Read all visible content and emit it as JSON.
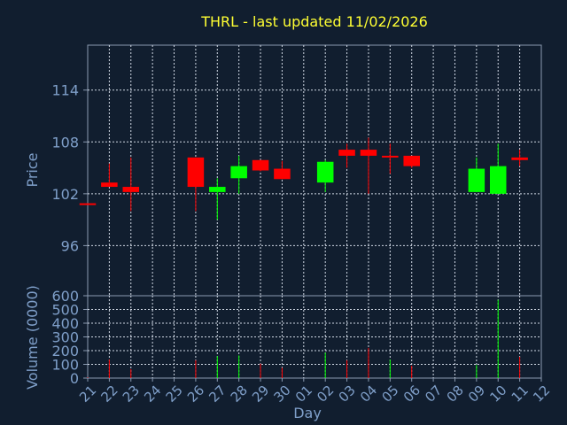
{
  "chart_data": {
    "type": "candlestick",
    "title": "THRL - last updated 11/02/2026",
    "xlabel": "Day",
    "price_ylabel": "Price",
    "volume_ylabel": "Volume (0000)",
    "price_yticks": [
      96,
      102,
      108,
      114
    ],
    "price_ylim": [
      90.2,
      119.2
    ],
    "volume_yticks": [
      0,
      100,
      200,
      300,
      400,
      500,
      600
    ],
    "volume_ylim": [
      0,
      600
    ],
    "days": [
      "21",
      "22",
      "23",
      "24",
      "25",
      "26",
      "27",
      "28",
      "29",
      "30",
      "01",
      "02",
      "03",
      "04",
      "05",
      "06",
      "07",
      "08",
      "09",
      "10",
      "11",
      "12"
    ],
    "grid": true,
    "up_color": "#00ff00",
    "down_color": "#ff0000",
    "background": "#111e2f",
    "candles": [
      {
        "day": "21",
        "open": 100.9,
        "high": 100.9,
        "low": 100.7,
        "close": 100.7
      },
      {
        "day": "22",
        "open": 103.3,
        "high": 105.5,
        "low": 102.8,
        "close": 102.8
      },
      {
        "day": "23",
        "open": 102.8,
        "high": 106.2,
        "low": 100.0,
        "close": 102.2
      },
      {
        "day": "26",
        "open": 106.2,
        "high": 106.2,
        "low": 100.0,
        "close": 102.8
      },
      {
        "day": "27",
        "open": 102.2,
        "high": 103.8,
        "low": 99.0,
        "close": 102.8
      },
      {
        "day": "28",
        "open": 103.8,
        "high": 106.4,
        "low": 102.0,
        "close": 105.2
      },
      {
        "day": "29",
        "open": 105.9,
        "high": 105.9,
        "low": 104.6,
        "close": 104.7
      },
      {
        "day": "30",
        "open": 104.9,
        "high": 105.8,
        "low": 103.7,
        "close": 103.7
      },
      {
        "day": "02",
        "open": 103.3,
        "high": 105.9,
        "low": 102.2,
        "close": 105.7
      },
      {
        "day": "03",
        "open": 107.1,
        "high": 107.8,
        "low": 105.0,
        "close": 106.4
      },
      {
        "day": "04",
        "open": 107.1,
        "high": 108.5,
        "low": 102.0,
        "close": 106.4
      },
      {
        "day": "05",
        "open": 106.4,
        "high": 107.8,
        "low": 104.3,
        "close": 106.4
      },
      {
        "day": "06",
        "open": 106.4,
        "high": 106.4,
        "low": 105.0,
        "close": 105.2
      },
      {
        "day": "09",
        "open": 102.2,
        "high": 106.2,
        "low": 102.2,
        "close": 104.9
      },
      {
        "day": "10",
        "open": 102.0,
        "high": 107.8,
        "low": 102.0,
        "close": 105.2
      },
      {
        "day": "11",
        "open": 106.2,
        "high": 107.1,
        "low": 105.2,
        "close": 105.9
      }
    ],
    "volume": [
      {
        "day": "21",
        "value": 5,
        "dir": "down"
      },
      {
        "day": "22",
        "value": 135,
        "dir": "down"
      },
      {
        "day": "23",
        "value": 65,
        "dir": "down"
      },
      {
        "day": "26",
        "value": 130,
        "dir": "down"
      },
      {
        "day": "27",
        "value": 160,
        "dir": "up"
      },
      {
        "day": "28",
        "value": 165,
        "dir": "up"
      },
      {
        "day": "29",
        "value": 105,
        "dir": "down"
      },
      {
        "day": "30",
        "value": 75,
        "dir": "down"
      },
      {
        "day": "02",
        "value": 185,
        "dir": "up"
      },
      {
        "day": "03",
        "value": 130,
        "dir": "down"
      },
      {
        "day": "04",
        "value": 220,
        "dir": "down"
      },
      {
        "day": "05",
        "value": 135,
        "dir": "up"
      },
      {
        "day": "06",
        "value": 90,
        "dir": "down"
      },
      {
        "day": "09",
        "value": 95,
        "dir": "up"
      },
      {
        "day": "10",
        "value": 570,
        "dir": "up"
      },
      {
        "day": "11",
        "value": 155,
        "dir": "down"
      }
    ]
  }
}
